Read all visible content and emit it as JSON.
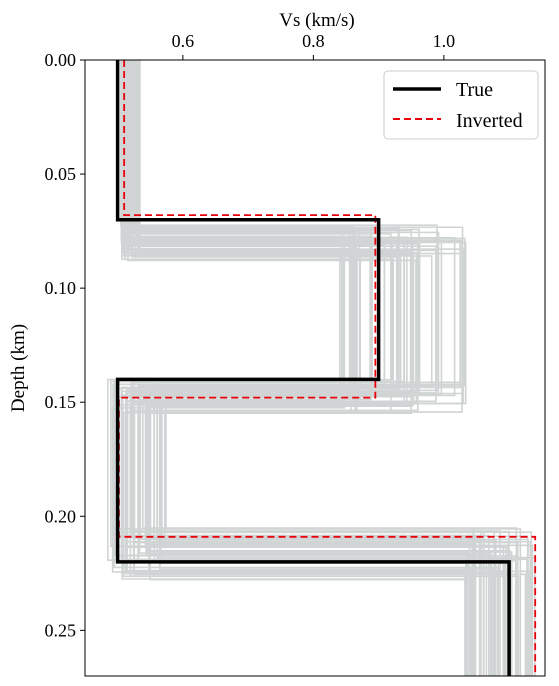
{
  "chart_data": {
    "type": "line",
    "title": "",
    "xlabel": "Vs (km/s)",
    "ylabel": "Depth (km)",
    "xlim": [
      0.45,
      1.155
    ],
    "ylim": [
      0.27,
      0.0
    ],
    "x_axis_position": "top",
    "y_inverted": true,
    "grid": false,
    "legend_position": "top-right",
    "x_ticks": [
      0.6,
      0.8,
      1.0
    ],
    "x_tick_labels": [
      "0.6",
      "0.8",
      "1.0"
    ],
    "y_ticks": [
      0.0,
      0.05,
      0.1,
      0.15,
      0.2,
      0.25
    ],
    "y_tick_labels": [
      "0.00",
      "0.05",
      "0.10",
      "0.15",
      "0.20",
      "0.25"
    ],
    "series": [
      {
        "name": "True",
        "color": "#000000",
        "style": "solid",
        "layers": [
          {
            "vs": 0.5,
            "top": 0.0,
            "bottom": 0.07
          },
          {
            "vs": 0.9,
            "top": 0.07,
            "bottom": 0.14
          },
          {
            "vs": 0.5,
            "top": 0.14,
            "bottom": 0.22
          },
          {
            "vs": 1.1,
            "top": 0.22,
            "bottom": 0.27
          }
        ]
      },
      {
        "name": "Inverted",
        "color": "#e8000b",
        "style": "dashed",
        "layers": [
          {
            "vs": 0.51,
            "top": 0.0,
            "bottom": 0.068
          },
          {
            "vs": 0.895,
            "top": 0.068,
            "bottom": 0.148
          },
          {
            "vs": 0.502,
            "top": 0.148,
            "bottom": 0.209
          },
          {
            "vs": 1.14,
            "top": 0.209,
            "bottom": 0.27
          }
        ]
      }
    ],
    "ensemble": {
      "color": "#d0d4d4",
      "vs_ranges": [
        [
          0.505,
          0.535
        ],
        [
          0.84,
          1.04
        ],
        [
          0.485,
          0.575
        ],
        [
          1.03,
          1.14
        ]
      ],
      "boundary_ranges": [
        [
          0.072,
          0.088
        ],
        [
          0.14,
          0.155
        ],
        [
          0.205,
          0.228
        ]
      ],
      "model_count": 60
    }
  }
}
